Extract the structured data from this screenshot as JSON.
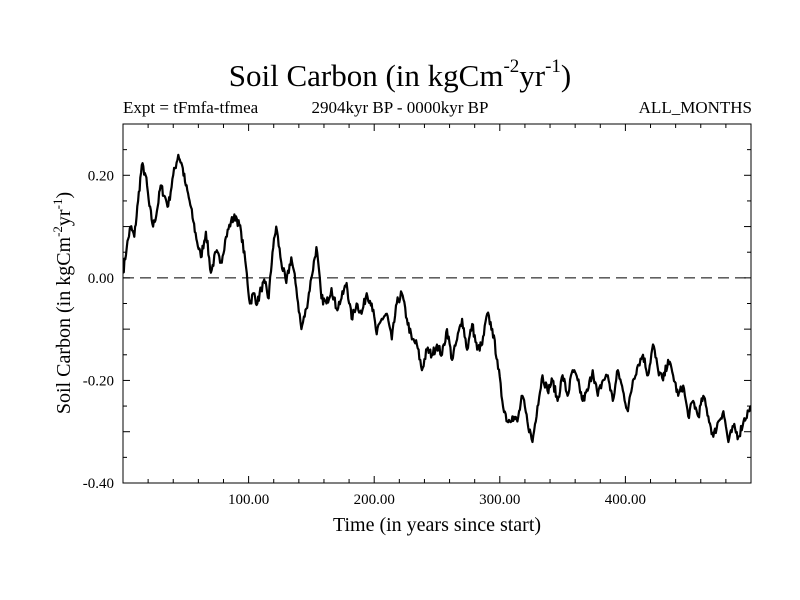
{
  "header": {
    "title_main": "Soil Carbon (in kgCm",
    "title_sup1": "-2",
    "title_mid": "yr",
    "title_sup2": "-1",
    "title_end": ")",
    "expt_label": "Expt = tFmfa-tfmea",
    "period_label": "2904kyr BP - 0000kyr BP",
    "months_label": "ALL_MONTHS"
  },
  "chart_data": {
    "type": "line",
    "title": "Soil Carbon (in kgCm-2yr-1)",
    "xlabel": "Time (in years since start)",
    "ylabel_parts": {
      "main": "Soil Carbon (in kgCm",
      "sup1": "-2",
      "mid": "yr",
      "sup2": "-1",
      "end": ")"
    },
    "xlim": [
      0,
      500
    ],
    "ylim": [
      -0.4,
      0.3
    ],
    "x_ticks": [
      100,
      200,
      300,
      400
    ],
    "x_tick_labels": [
      "100.00",
      "200.00",
      "300.00",
      "400.00"
    ],
    "y_ticks": [
      -0.4,
      -0.2,
      0.0,
      0.2
    ],
    "y_tick_labels": [
      "-0.40",
      "-0.20",
      "0.00",
      "0.20"
    ],
    "reference_line": {
      "y": 0.0,
      "style": "dashed"
    },
    "series": [
      {
        "name": "tFmfa-tfmea",
        "color": "#000000",
        "x": [
          0,
          3,
          6,
          9,
          12,
          15,
          18,
          21,
          24,
          27,
          30,
          33,
          36,
          40,
          44,
          47,
          50,
          53,
          56,
          59,
          62,
          66,
          70,
          74,
          78,
          82,
          86,
          90,
          94,
          98,
          101,
          104,
          107,
          110,
          113,
          116,
          119,
          122,
          126,
          130,
          134,
          138,
          142,
          146,
          150,
          154,
          158,
          162,
          166,
          170,
          174,
          178,
          182,
          186,
          190,
          194,
          198,
          202,
          206,
          210,
          214,
          218,
          222,
          226,
          230,
          234,
          238,
          242,
          246,
          250,
          254,
          258,
          262,
          266,
          270,
          274,
          278,
          282,
          286,
          290,
          294,
          298,
          302,
          306,
          310,
          314,
          318,
          322,
          326,
          330,
          334,
          338,
          342,
          346,
          350,
          354,
          358,
          362,
          366,
          370,
          374,
          378,
          382,
          386,
          390,
          394,
          398,
          402,
          406,
          410,
          414,
          418,
          422,
          426,
          430,
          434,
          438,
          442,
          446,
          450,
          454,
          458,
          462,
          466,
          470,
          474,
          478,
          482,
          486,
          490,
          494,
          498,
          500
        ],
        "y": [
          0.01,
          0.06,
          0.1,
          0.08,
          0.15,
          0.22,
          0.2,
          0.14,
          0.1,
          0.13,
          0.18,
          0.16,
          0.14,
          0.2,
          0.24,
          0.22,
          0.18,
          0.15,
          0.11,
          0.07,
          0.04,
          0.09,
          0.01,
          0.05,
          0.03,
          0.08,
          0.11,
          0.12,
          0.09,
          0.02,
          -0.05,
          -0.03,
          -0.05,
          -0.02,
          -0.01,
          -0.04,
          0.05,
          0.1,
          0.03,
          -0.01,
          0.04,
          -0.02,
          -0.1,
          -0.06,
          0.0,
          0.06,
          -0.04,
          -0.05,
          -0.02,
          -0.06,
          -0.04,
          -0.01,
          -0.08,
          -0.05,
          -0.07,
          -0.03,
          -0.05,
          -0.11,
          -0.08,
          -0.07,
          -0.12,
          -0.05,
          -0.03,
          -0.08,
          -0.12,
          -0.13,
          -0.18,
          -0.14,
          -0.15,
          -0.13,
          -0.15,
          -0.1,
          -0.16,
          -0.12,
          -0.08,
          -0.14,
          -0.09,
          -0.14,
          -0.13,
          -0.07,
          -0.1,
          -0.16,
          -0.24,
          -0.28,
          -0.27,
          -0.28,
          -0.23,
          -0.28,
          -0.32,
          -0.25,
          -0.19,
          -0.22,
          -0.2,
          -0.24,
          -0.19,
          -0.23,
          -0.18,
          -0.2,
          -0.24,
          -0.22,
          -0.18,
          -0.23,
          -0.2,
          -0.19,
          -0.24,
          -0.18,
          -0.22,
          -0.26,
          -0.2,
          -0.17,
          -0.15,
          -0.19,
          -0.13,
          -0.18,
          -0.2,
          -0.16,
          -0.19,
          -0.23,
          -0.21,
          -0.27,
          -0.24,
          -0.27,
          -0.23,
          -0.27,
          -0.31,
          -0.28,
          -0.26,
          -0.32,
          -0.29,
          -0.31,
          -0.28,
          -0.26,
          -0.25
        ]
      }
    ]
  }
}
